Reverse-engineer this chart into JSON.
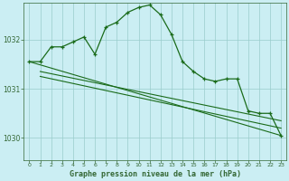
{
  "title": "Graphe pression niveau de la mer (hPa)",
  "background_color": "#cbeef3",
  "grid_color": "#99cccc",
  "line_color": "#1a6b1a",
  "axis_color": "#336633",
  "x_ticks": [
    0,
    1,
    2,
    3,
    4,
    5,
    6,
    7,
    8,
    9,
    10,
    11,
    12,
    13,
    14,
    15,
    16,
    17,
    18,
    19,
    20,
    21,
    22,
    23
  ],
  "y_ticks": [
    1030,
    1031,
    1032
  ],
  "ylim": [
    1029.55,
    1032.75
  ],
  "xlim": [
    -0.5,
    23.5
  ],
  "series1_x": [
    0,
    1,
    2,
    3,
    4,
    5,
    6,
    7,
    8,
    9,
    10,
    11,
    12,
    13,
    14,
    15,
    16,
    17,
    18,
    19,
    20,
    21,
    22,
    23
  ],
  "series1_y": [
    1031.55,
    1031.55,
    1031.85,
    1031.85,
    1031.95,
    1032.05,
    1031.7,
    1032.25,
    1032.35,
    1032.55,
    1032.65,
    1032.7,
    1032.5,
    1032.1,
    1031.55,
    1031.35,
    1031.2,
    1031.15,
    1031.2,
    1031.2,
    1030.55,
    1030.5,
    1030.5,
    1030.05
  ],
  "series2_x": [
    0,
    23
  ],
  "series2_y": [
    1031.55,
    1030.05
  ],
  "series3_x": [
    1,
    23
  ],
  "series3_y": [
    1031.35,
    1030.35
  ],
  "series4_x": [
    1,
    23
  ],
  "series4_y": [
    1031.25,
    1030.2
  ]
}
